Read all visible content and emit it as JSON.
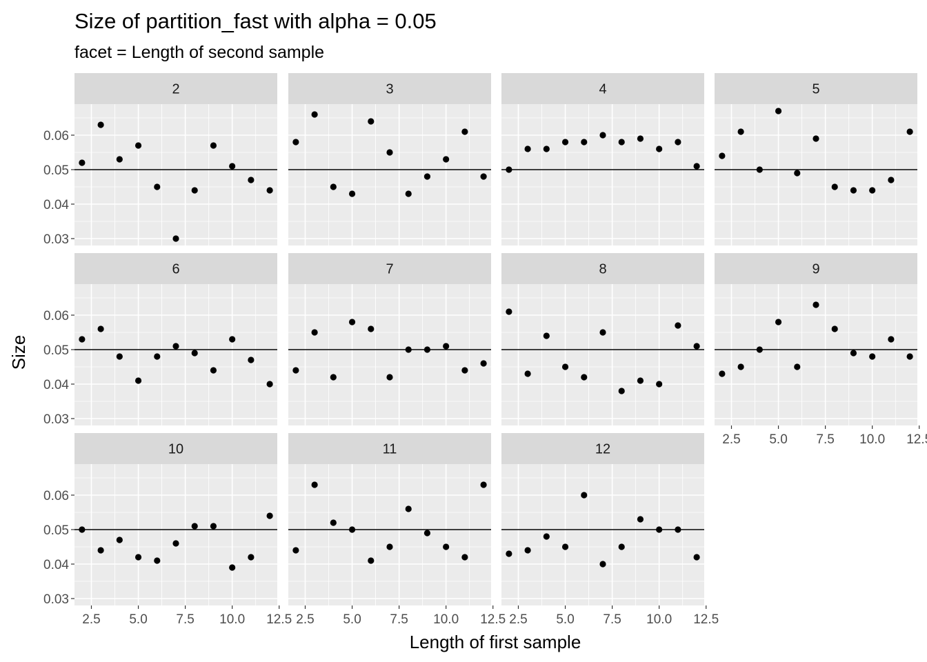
{
  "chart_data": {
    "type": "scatter",
    "title": "Size of partition_fast with alpha = 0.05",
    "subtitle": "facet = Length of second sample",
    "xlabel": "Length of first sample",
    "ylabel": "Size",
    "xlim": [
      1.6,
      12.4
    ],
    "ylim": [
      0.028,
      0.069
    ],
    "x_ticks": [
      2.5,
      5.0,
      7.5,
      10.0,
      12.5
    ],
    "x_tick_labels": [
      "2.5",
      "5.0",
      "7.5",
      "10.0",
      "12.5"
    ],
    "y_ticks": [
      0.03,
      0.04,
      0.05,
      0.06
    ],
    "y_tick_labels": [
      "0.03",
      "0.04",
      "0.05",
      "0.06"
    ],
    "reference_line": 0.05,
    "grid": true,
    "x": [
      2,
      3,
      4,
      5,
      6,
      7,
      8,
      9,
      10,
      11,
      12
    ],
    "facets": [
      {
        "label": "2",
        "values": [
          0.052,
          0.063,
          0.053,
          0.057,
          0.045,
          0.03,
          0.044,
          0.057,
          0.051,
          0.047,
          0.044
        ]
      },
      {
        "label": "3",
        "values": [
          0.058,
          0.066,
          0.045,
          0.043,
          0.064,
          0.055,
          0.043,
          0.048,
          0.053,
          0.061,
          0.048
        ]
      },
      {
        "label": "4",
        "values": [
          0.05,
          0.056,
          0.056,
          0.058,
          0.058,
          0.06,
          0.058,
          0.059,
          0.056,
          0.058,
          0.051
        ]
      },
      {
        "label": "5",
        "values": [
          0.054,
          0.061,
          0.05,
          0.067,
          0.049,
          0.059,
          0.045,
          0.044,
          0.044,
          0.047,
          0.061
        ]
      },
      {
        "label": "6",
        "values": [
          0.053,
          0.056,
          0.048,
          0.041,
          0.048,
          0.051,
          0.049,
          0.044,
          0.053,
          0.047,
          0.04
        ]
      },
      {
        "label": "7",
        "values": [
          0.044,
          0.055,
          0.042,
          0.058,
          0.056,
          0.042,
          0.05,
          0.05,
          0.051,
          0.044,
          0.046
        ]
      },
      {
        "label": "8",
        "values": [
          0.061,
          0.043,
          0.054,
          0.045,
          0.042,
          0.055,
          0.038,
          0.041,
          0.04,
          0.057,
          0.051
        ]
      },
      {
        "label": "9",
        "values": [
          0.043,
          0.045,
          0.05,
          0.058,
          0.045,
          0.063,
          0.056,
          0.049,
          0.048,
          0.053,
          0.048
        ]
      },
      {
        "label": "10",
        "values": [
          0.05,
          0.044,
          0.047,
          0.042,
          0.041,
          0.046,
          0.051,
          0.051,
          0.039,
          0.042,
          0.054
        ]
      },
      {
        "label": "11",
        "values": [
          0.044,
          0.063,
          0.052,
          0.05,
          0.041,
          0.045,
          0.056,
          0.049,
          0.045,
          0.042,
          0.063
        ]
      },
      {
        "label": "12",
        "values": [
          0.043,
          0.044,
          0.048,
          0.045,
          0.06,
          0.04,
          0.045,
          0.053,
          0.05,
          0.05,
          0.042
        ]
      }
    ],
    "colors": {
      "panel_background": "#ebebeb",
      "strip_background": "#d9d9d9",
      "grid_major": "#ffffff",
      "point": "#000000",
      "reference_line": "#000000",
      "tick_label": "#4d4d4d"
    }
  }
}
